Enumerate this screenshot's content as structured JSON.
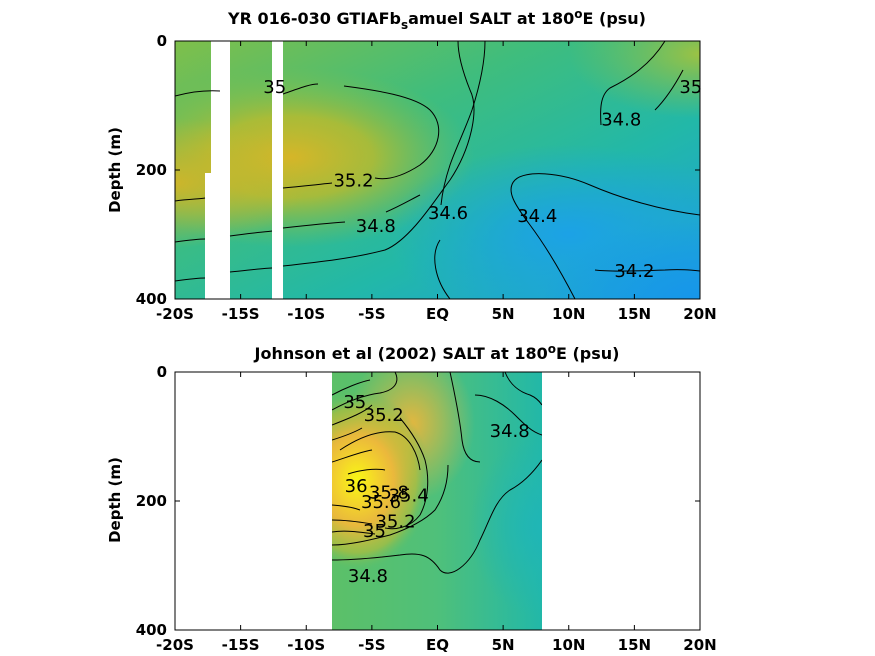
{
  "chart_data": [
    {
      "type": "heatmap",
      "title_main": "YR 016-030 GTIAFb",
      "title_sub": "s",
      "title_rest": "amuel SALT at 180",
      "title_sup": "o",
      "title_end": "E (psu)",
      "ylabel": "Depth (m)",
      "xlim": [
        -20,
        20
      ],
      "ylim": [
        400,
        0
      ],
      "x_ticks": [
        {
          "v": -20,
          "label": "-20S"
        },
        {
          "v": -15,
          "label": "-15S"
        },
        {
          "v": -10,
          "label": "-10S"
        },
        {
          "v": -5,
          "label": "-5S"
        },
        {
          "v": 0,
          "label": "EQ"
        },
        {
          "v": 5,
          "label": "5N"
        },
        {
          "v": 10,
          "label": "10N"
        },
        {
          "v": 15,
          "label": "15N"
        },
        {
          "v": 20,
          "label": "20N"
        }
      ],
      "y_ticks": [
        {
          "v": 0,
          "label": "0"
        },
        {
          "v": 200,
          "label": "200"
        },
        {
          "v": 400,
          "label": "400"
        }
      ],
      "contour_labels": [
        {
          "text": "35",
          "x": -12.4,
          "y": 70
        },
        {
          "text": "35.2",
          "x": -6.4,
          "y": 215
        },
        {
          "text": "34.8",
          "x": -4.7,
          "y": 285
        },
        {
          "text": "34.6",
          "x": 0.8,
          "y": 265
        },
        {
          "text": "34.4",
          "x": 7.6,
          "y": 270
        },
        {
          "text": "34.8",
          "x": 14,
          "y": 120
        },
        {
          "text": "35",
          "x": 19.3,
          "y": 70
        },
        {
          "text": "34.2",
          "x": 15,
          "y": 355
        }
      ]
    },
    {
      "type": "heatmap",
      "title_main": "Johnson et al (2002) SALT at 180",
      "title_sup": "o",
      "title_end": "E (psu)",
      "ylabel": "Depth (m)",
      "xlim": [
        -20,
        20
      ],
      "ylim": [
        400,
        0
      ],
      "x_ticks": [
        {
          "v": -20,
          "label": "-20S"
        },
        {
          "v": -15,
          "label": "-15S"
        },
        {
          "v": -10,
          "label": "-10S"
        },
        {
          "v": -5,
          "label": "-5S"
        },
        {
          "v": 0,
          "label": "EQ"
        },
        {
          "v": 5,
          "label": "5N"
        },
        {
          "v": 10,
          "label": "10N"
        },
        {
          "v": 15,
          "label": "15N"
        },
        {
          "v": 20,
          "label": "20N"
        }
      ],
      "y_ticks": [
        {
          "v": 0,
          "label": "0"
        },
        {
          "v": 200,
          "label": "200"
        },
        {
          "v": 400,
          "label": "400"
        }
      ],
      "data_extent_lon": [
        -8,
        8
      ],
      "contour_labels": [
        {
          "text": "35",
          "x": -6.3,
          "y": 45
        },
        {
          "text": "35.2",
          "x": -4.1,
          "y": 65
        },
        {
          "text": "34.8",
          "x": 5.5,
          "y": 90
        },
        {
          "text": "36",
          "x": -6.2,
          "y": 175
        },
        {
          "text": "35.8",
          "x": -3.7,
          "y": 185
        },
        {
          "text": "35.6",
          "x": -4.3,
          "y": 200
        },
        {
          "text": "35.4",
          "x": -2.2,
          "y": 190
        },
        {
          "text": "35.2",
          "x": -3.2,
          "y": 230
        },
        {
          "text": "35",
          "x": -4.8,
          "y": 245
        },
        {
          "text": "34.8",
          "x": -5.3,
          "y": 315
        }
      ]
    }
  ]
}
